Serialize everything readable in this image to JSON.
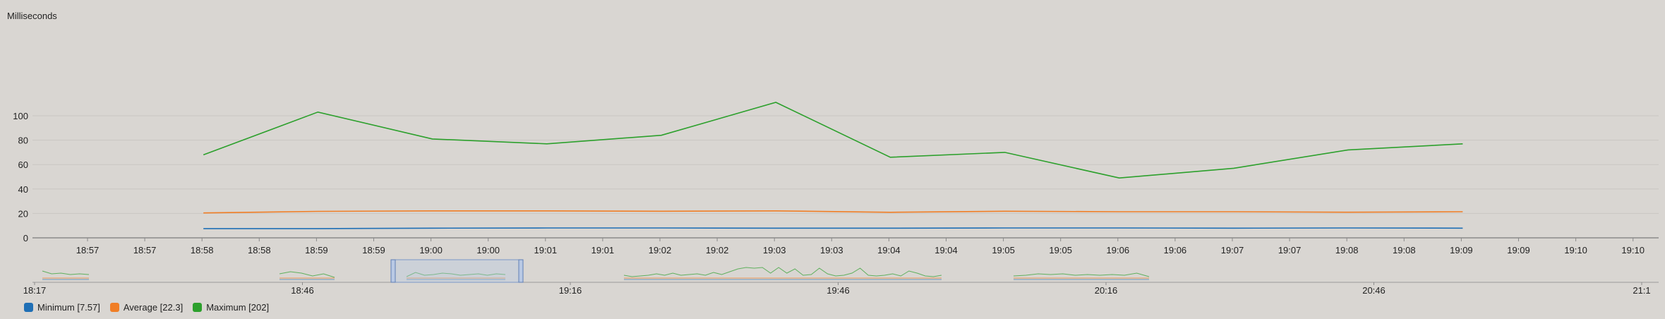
{
  "chart_data": {
    "type": "line",
    "ylabel": "Milliseconds",
    "ylim": [
      0,
      120
    ],
    "y_ticks": [
      0,
      20,
      40,
      60,
      80,
      100
    ],
    "x_tick_labels": [
      "18:57",
      "18:57",
      "18:58",
      "18:58",
      "18:59",
      "18:59",
      "19:00",
      "19:00",
      "19:01",
      "19:01",
      "19:02",
      "19:02",
      "19:03",
      "19:03",
      "19:04",
      "19:04",
      "19:05",
      "19:05",
      "19:06",
      "19:06",
      "19:07",
      "19:07",
      "19:08",
      "19:08",
      "19:09",
      "19:09",
      "19:10",
      "19:10"
    ],
    "x": [
      "18:58",
      "18:59",
      "19:00",
      "19:01",
      "19:02",
      "19:03",
      "19:04",
      "19:05",
      "19:06",
      "19:07",
      "19:08",
      "19:09"
    ],
    "series": [
      {
        "name": "Minimum",
        "legend_value": "7.57",
        "color": "#1f6fb5",
        "values": [
          7.6,
          7.6,
          7.9,
          8.1,
          8.1,
          7.9,
          7.9,
          8.1,
          8.1,
          7.9,
          8.1,
          7.9
        ]
      },
      {
        "name": "Average",
        "legend_value": "22.3",
        "color": "#f07e26",
        "values": [
          20.4,
          21.7,
          22.1,
          22.1,
          21.8,
          22.1,
          20.9,
          21.8,
          21.4,
          21.4,
          21.0,
          21.4
        ]
      },
      {
        "name": "Maximum",
        "legend_value": "202",
        "color": "#2ca02c",
        "values": [
          68,
          103,
          81,
          77,
          84,
          111,
          66,
          70,
          49,
          57,
          72,
          77
        ]
      }
    ],
    "grid": true,
    "legend_position": "bottom-left",
    "navigator": {
      "tick_labels": [
        "18:17",
        "18:46",
        "19:16",
        "19:46",
        "20:16",
        "20:46",
        "21:1"
      ],
      "selected_range": [
        "18:57",
        "19:10"
      ]
    }
  },
  "legend": {
    "items": [
      {
        "label": "Minimum [7.57]",
        "color": "#1f6fb5"
      },
      {
        "label": "Average [22.3]",
        "color": "#f07e26"
      },
      {
        "label": "Maximum [202]",
        "color": "#2ca02c"
      }
    ]
  }
}
